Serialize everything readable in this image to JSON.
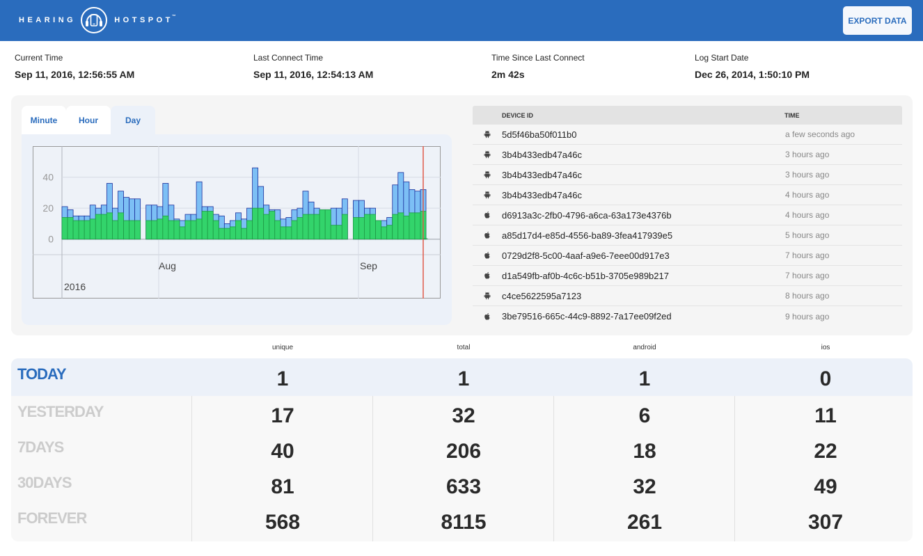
{
  "header": {
    "brand_left": "HEARING",
    "brand_right": "HOTSPOT",
    "brand_tm": "™",
    "export_label": "EXPORT DATA",
    "background": "#2a6cbd"
  },
  "stats": [
    {
      "label": "Current Time",
      "value": "Sep 11, 2016, 12:56:55 AM"
    },
    {
      "label": "Last Connect Time",
      "value": "Sep 11, 2016, 12:54:13 AM"
    },
    {
      "label": "Time Since Last Connect",
      "value": "2m 42s"
    },
    {
      "label": "Log Start Date",
      "value": "Dec 26, 2014, 1:50:10 PM"
    }
  ],
  "tabs": [
    {
      "label": "Minute",
      "active": false
    },
    {
      "label": "Hour",
      "active": false
    },
    {
      "label": "Day",
      "active": true
    }
  ],
  "chart_data": {
    "type": "bar",
    "stacked": false,
    "x_tick_labels": [
      "Aug",
      "Sep"
    ],
    "x_sub_label": "2016",
    "y_ticks": [
      0,
      20,
      40
    ],
    "ylim": [
      -10,
      60
    ],
    "grid": true,
    "colors": {
      "total": "#7cbff5",
      "total_stroke": "#1c2f9b",
      "unique": "#33d46b",
      "unique_stroke": "#1e9a45",
      "marker": "#e05a4a"
    },
    "series": [
      {
        "name": "total",
        "values": [
          21,
          19,
          15,
          15,
          15,
          22,
          20,
          22,
          36,
          20,
          31,
          27,
          26,
          26,
          0,
          22,
          22,
          21,
          36,
          22,
          13,
          12,
          16,
          16,
          37,
          21,
          21,
          16,
          15,
          10,
          12,
          17,
          13,
          20,
          46,
          34,
          22,
          19,
          19,
          13,
          14,
          19,
          20,
          31,
          24,
          20,
          19,
          19,
          20,
          20,
          26,
          0,
          25,
          25,
          20,
          20,
          12,
          12,
          14,
          35,
          43,
          37,
          32,
          31,
          32
        ]
      },
      {
        "name": "unique",
        "values": [
          14,
          14,
          12,
          12,
          12,
          13,
          16,
          16,
          17,
          12,
          17,
          12,
          12,
          12,
          0,
          12,
          12,
          13,
          15,
          12,
          12,
          8,
          12,
          12,
          13,
          18,
          18,
          12,
          7,
          7,
          8,
          12,
          7,
          12,
          20,
          20,
          16,
          18,
          12,
          8,
          8,
          12,
          14,
          16,
          16,
          16,
          19,
          19,
          9,
          9,
          16,
          0,
          14,
          14,
          16,
          16,
          12,
          8,
          9,
          16,
          17,
          15,
          17,
          17,
          18
        ]
      }
    ],
    "x_category_count": 65,
    "marker_index": 64,
    "marker_tail_value": 0.5
  },
  "devices": {
    "headers": {
      "id": "DEVICE ID",
      "time": "TIME"
    },
    "rows": [
      {
        "os": "android",
        "id": "5d5f46ba50f011b0",
        "time": "a few seconds ago"
      },
      {
        "os": "android",
        "id": "3b4b433edb47a46c",
        "time": "3 hours ago"
      },
      {
        "os": "android",
        "id": "3b4b433edb47a46c",
        "time": "3 hours ago"
      },
      {
        "os": "android",
        "id": "3b4b433edb47a46c",
        "time": "4 hours ago"
      },
      {
        "os": "apple",
        "id": "d6913a3c-2fb0-4796-a6ca-63a173e4376b",
        "time": "4 hours ago"
      },
      {
        "os": "apple",
        "id": "a85d17d4-e85d-4556-ba89-3fea417939e5",
        "time": "5 hours ago"
      },
      {
        "os": "apple",
        "id": "0729d2f8-5c00-4aaf-a9e6-7eee00d917e3",
        "time": "7 hours ago"
      },
      {
        "os": "apple",
        "id": "d1a549fb-af0b-4c6c-b51b-3705e989b217",
        "time": "7 hours ago"
      },
      {
        "os": "android",
        "id": "c4ce5622595a7123",
        "time": "8 hours ago"
      },
      {
        "os": "apple",
        "id": "3be79516-665c-44c9-8892-7a17ee09f2ed",
        "time": "9 hours ago"
      }
    ]
  },
  "summary": {
    "columns": [
      "unique",
      "total",
      "android",
      "ios"
    ],
    "rows": [
      {
        "label": "TODAY",
        "values": [
          "1",
          "1",
          "1",
          "0"
        ]
      },
      {
        "label": "YESTERDAY",
        "values": [
          "17",
          "32",
          "6",
          "11"
        ]
      },
      {
        "label": "7DAYS",
        "values": [
          "40",
          "206",
          "18",
          "22"
        ]
      },
      {
        "label": "30DAYS",
        "values": [
          "81",
          "633",
          "32",
          "49"
        ]
      },
      {
        "label": "FOREVER",
        "values": [
          "568",
          "8115",
          "261",
          "307"
        ]
      }
    ]
  }
}
